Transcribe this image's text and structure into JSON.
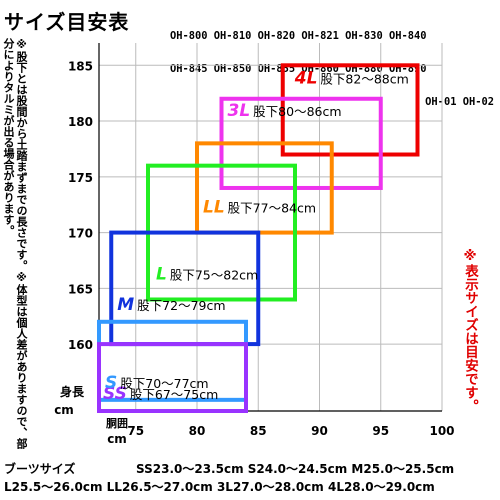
{
  "title": "サイズ目安表",
  "models": [
    "OH-800 OH-810 OH-820 OH-821 OH-830 OH-840",
    "OH-845 OH-850 OH-855 OH-860 OH-880 OH-890",
    "OH-01 OH-02"
  ],
  "note_left": "※股下とは股間から土踏まずまでの長さです。※体型は個人差がありますので、部分によりタルミが出る場合があります。",
  "note_right": "※表示サイズは目安です。",
  "chart_data": {
    "type": "range_boxes",
    "xlabel": "胴囲 cm",
    "ylabel": "身長 cm",
    "xlim": [
      72,
      100
    ],
    "ylim": [
      154,
      187
    ],
    "x_ticks": [
      75,
      80,
      85,
      90,
      95,
      100
    ],
    "y_ticks": [
      160,
      165,
      170,
      175,
      180,
      185
    ],
    "sizes": [
      {
        "name": "SS",
        "label": "股下67～75cm",
        "color": "#9933ff",
        "waist": [
          72,
          84
        ],
        "height": [
          154,
          160
        ]
      },
      {
        "name": "S",
        "label": "股下70～77cm",
        "color": "#3399ff",
        "waist": [
          72,
          84
        ],
        "height": [
          155,
          162
        ]
      },
      {
        "name": "M",
        "label": "股下72～79cm",
        "color": "#1133dd",
        "waist": [
          73,
          85
        ],
        "height": [
          160,
          170
        ]
      },
      {
        "name": "L",
        "label": "股下75～82cm",
        "color": "#22ee22",
        "waist": [
          76,
          88
        ],
        "height": [
          164,
          176
        ]
      },
      {
        "name": "LL",
        "label": "股下77～84cm",
        "color": "#ff8800",
        "waist": [
          80,
          91
        ],
        "height": [
          170,
          178
        ]
      },
      {
        "name": "3L",
        "label": "股下80～86cm",
        "color": "#ee33ee",
        "waist": [
          82,
          95
        ],
        "height": [
          174,
          182
        ]
      },
      {
        "name": "4L",
        "label": "股下82～88cm",
        "color": "#ee0000",
        "waist": [
          87,
          98
        ],
        "height": [
          177,
          185
        ]
      }
    ],
    "grid": true
  },
  "boots": {
    "title": "ブーツサイズ",
    "line1": "SS23.0～23.5cm S24.0～24.5cm M25.0～25.5cm",
    "line2": "L25.5～26.0cm LL26.5～27.0cm 3L27.0～28.0cm 4L28.0～29.0cm"
  }
}
